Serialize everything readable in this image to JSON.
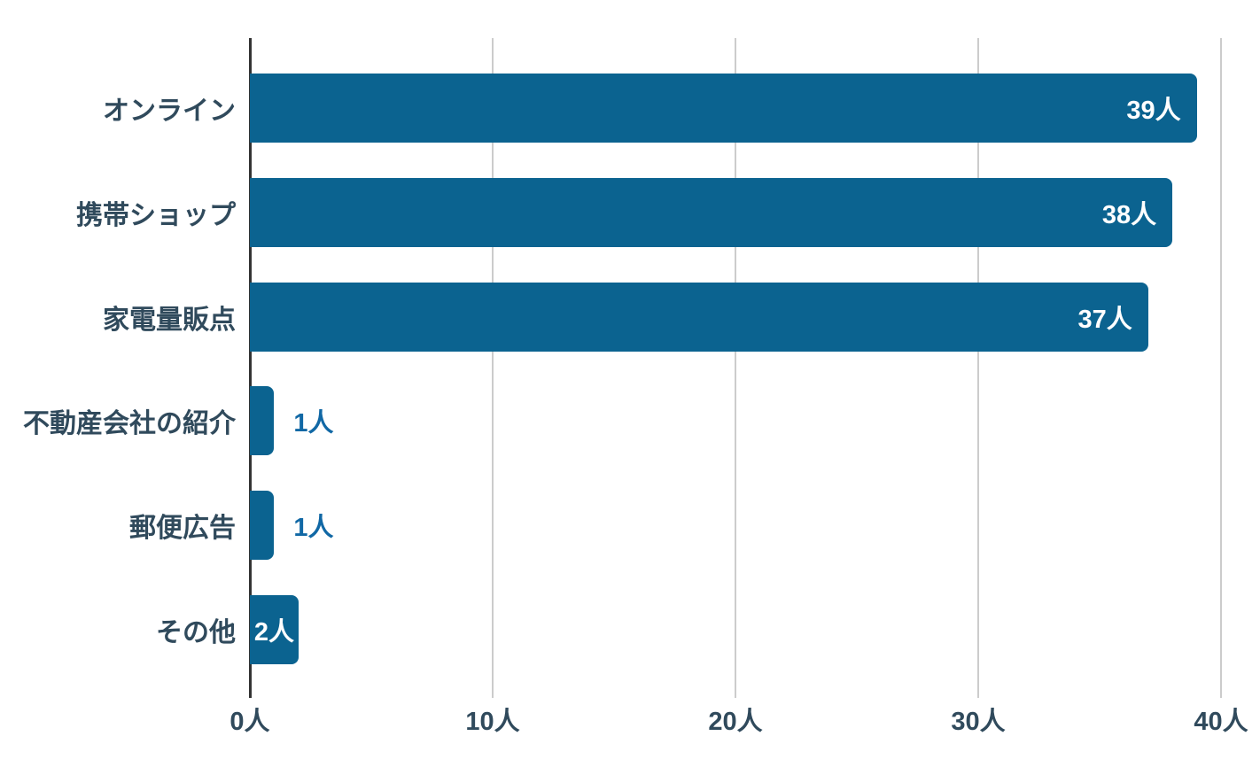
{
  "chart_data": {
    "type": "bar",
    "orientation": "horizontal",
    "title": "",
    "categories": [
      "オンライン",
      "携帯ショップ",
      "家電量販点",
      "不動産会社の紹介",
      "郵便広告",
      "その他"
    ],
    "values": [
      39,
      38,
      37,
      1,
      1,
      2
    ],
    "value_labels": [
      "39人",
      "38人",
      "37人",
      "1人",
      "1人",
      "2人"
    ],
    "value_label_positions": [
      "inside",
      "inside",
      "inside",
      "outside",
      "outside",
      "inside"
    ],
    "x_tick_labels": [
      "0人",
      "10人",
      "20人",
      "30人",
      "40人"
    ],
    "x_tick_values": [
      0,
      10,
      20,
      30,
      40
    ],
    "xlim": [
      0,
      40
    ],
    "unit_suffix": "人",
    "grid": "vertical-gridlines",
    "legend": "none",
    "colors": {
      "bar": "#0b6390",
      "value_label_inside": "#ffffff",
      "value_label_outside": "#1168a5",
      "category_label": "#304a5c",
      "tick_label": "#304a5c",
      "gridline": "#cccccc",
      "axis_line": "#333333",
      "background": "#ffffff"
    }
  }
}
